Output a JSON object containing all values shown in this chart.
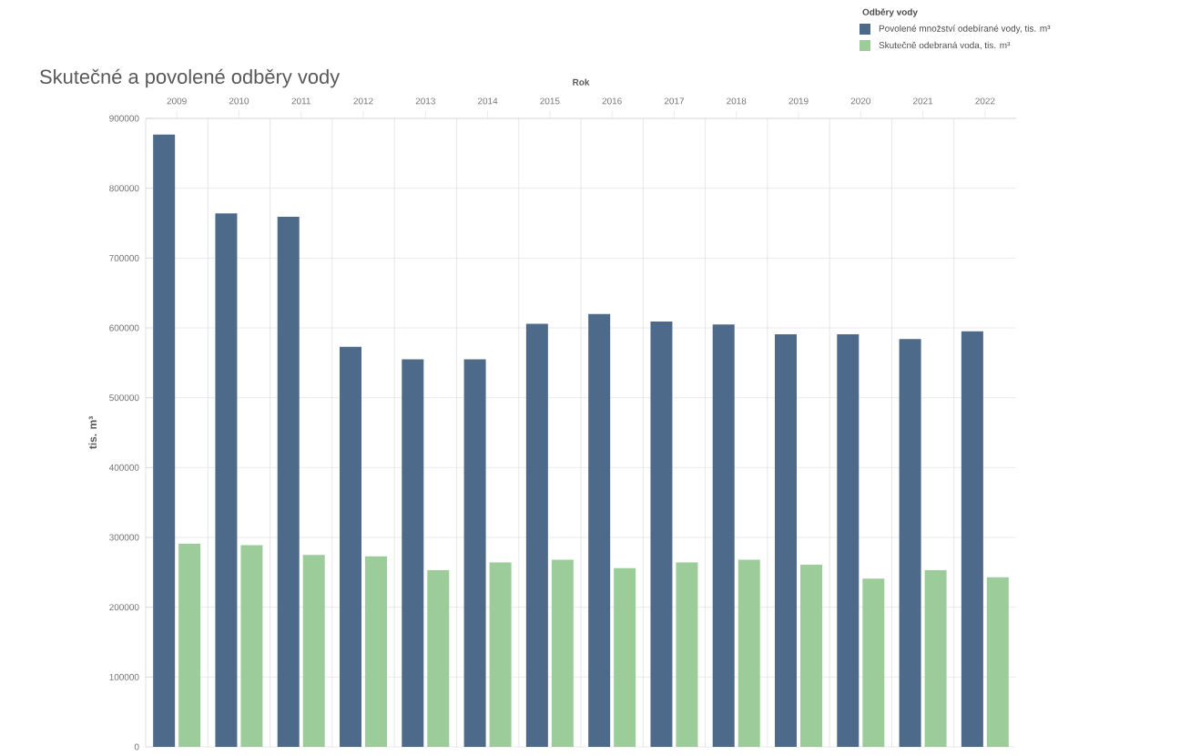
{
  "chart_data": {
    "type": "bar",
    "title": "Skutečné a povolené odběry vody",
    "xlabel": "Rok",
    "ylabel": "tis. m³",
    "legend_title": "Odběry vody",
    "categories": [
      "2009",
      "2010",
      "2011",
      "2012",
      "2013",
      "2014",
      "2015",
      "2016",
      "2017",
      "2018",
      "2019",
      "2020",
      "2021",
      "2022"
    ],
    "series": [
      {
        "name": "Povolené množství odebírané vody, tis. m³",
        "color": "#4e6a8a",
        "values": [
          877000,
          764000,
          759000,
          573000,
          555000,
          555000,
          606000,
          620000,
          609000,
          605000,
          591000,
          591000,
          584000,
          595000
        ]
      },
      {
        "name": "Skutečně odebraná voda, tis. m³",
        "color": "#9dcc9b",
        "values": [
          291000,
          289000,
          275000,
          273000,
          253000,
          264000,
          268000,
          256000,
          264000,
          268000,
          261000,
          241000,
          253000,
          243000
        ]
      }
    ],
    "ylim": [
      0,
      900000
    ],
    "yticks": [
      0,
      100000,
      200000,
      300000,
      400000,
      500000,
      600000,
      700000,
      800000,
      900000
    ],
    "grid": "y",
    "legend": "top right"
  }
}
